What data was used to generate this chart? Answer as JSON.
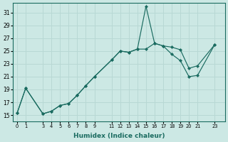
{
  "xlabel": "Humidex (Indice chaleur)",
  "background_color": "#cce8e4",
  "grid_color": "#b8d8d4",
  "line_color": "#1a6b60",
  "ylim": [
    14.0,
    32.5
  ],
  "yticks": [
    15,
    17,
    19,
    21,
    23,
    25,
    27,
    29,
    31
  ],
  "xticks": [
    0,
    1,
    3,
    4,
    5,
    6,
    7,
    8,
    9,
    11,
    12,
    13,
    14,
    15,
    16,
    17,
    18,
    19,
    20,
    21,
    23
  ],
  "xlim": [
    -0.5,
    24.2
  ],
  "xtick_labels": [
    "0",
    "1",
    "3",
    "4",
    "5",
    "6",
    "7",
    "8",
    "9",
    "11",
    "12",
    "13",
    "14",
    "15",
    "16",
    "17",
    "18",
    "19",
    "20",
    "21",
    "23"
  ],
  "upper_x": [
    0,
    1,
    3,
    4,
    5,
    6,
    7,
    8,
    9,
    11,
    12,
    13,
    14,
    15,
    16,
    17,
    18,
    19,
    20,
    21,
    23
  ],
  "upper_y": [
    15.3,
    19.2,
    15.2,
    15.6,
    16.5,
    16.8,
    18.1,
    19.6,
    21.0,
    23.6,
    25.0,
    24.8,
    25.3,
    32.0,
    26.2,
    25.8,
    25.6,
    25.2,
    22.3,
    22.7,
    26.0
  ],
  "lower_x": [
    0,
    1,
    3,
    4,
    5,
    6,
    7,
    8,
    9,
    11,
    12,
    13,
    14,
    15,
    16,
    17,
    18,
    19,
    20,
    21,
    23
  ],
  "lower_y": [
    15.3,
    19.2,
    15.2,
    15.6,
    16.5,
    16.8,
    18.1,
    19.6,
    21.0,
    23.6,
    25.0,
    24.8,
    25.3,
    25.3,
    26.2,
    25.8,
    24.5,
    23.5,
    21.0,
    21.2,
    26.0
  ]
}
